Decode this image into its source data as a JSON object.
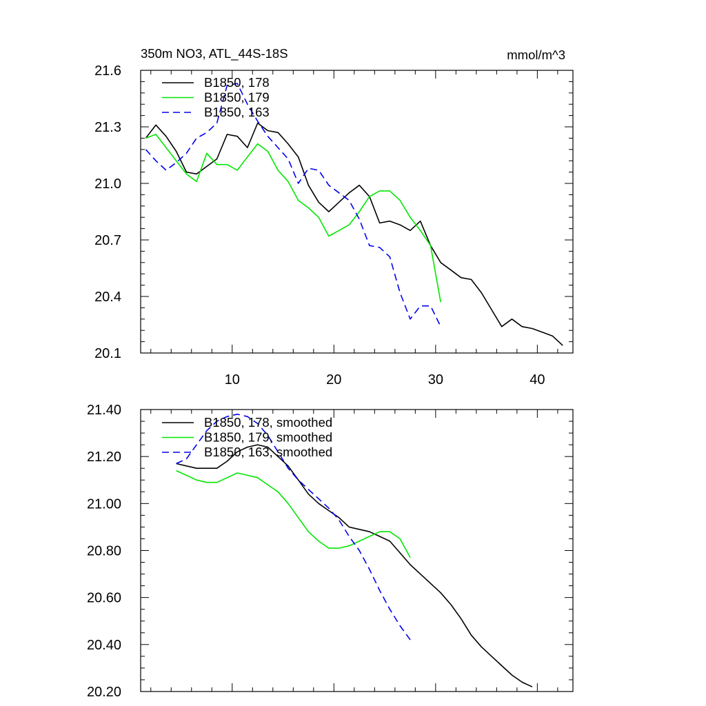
{
  "header": {
    "title": "350m NO3, ATL_44S-18S",
    "units": "mmol/m^3"
  },
  "chart_data": [
    {
      "type": "line",
      "title": "350m NO3, ATL_44S-18S",
      "units_label": "mmol/m^3",
      "xlabel": "",
      "ylabel": "",
      "xlim": [
        1,
        43.5
      ],
      "ylim": [
        20.1,
        21.6
      ],
      "x_ticks": [
        10,
        20,
        30,
        40
      ],
      "y_ticks": [
        20.1,
        20.4,
        20.7,
        21.0,
        21.3,
        21.6
      ],
      "y_tick_labels": [
        "20.1",
        "20.4",
        "20.7",
        "21.0",
        "21.3",
        "21.6"
      ],
      "legend": "top-left",
      "grid": false,
      "series": [
        {
          "name": "B1850, 178",
          "color": "#000000",
          "dash": "solid",
          "x": [
            1.5,
            2.5,
            3.5,
            4.5,
            5.5,
            6.5,
            7.5,
            8.5,
            9.5,
            10.5,
            11.5,
            12.5,
            13.5,
            14.5,
            15.5,
            16.5,
            17.5,
            18.5,
            19.5,
            20.5,
            21.5,
            22.5,
            23.5,
            24.5,
            25.5,
            26.5,
            27.5,
            28.5,
            29.5,
            30.5,
            31.5,
            32.5,
            33.5,
            34.5,
            35.5,
            36.5,
            37.5,
            38.5,
            39.5,
            40.5,
            41.5,
            42.5
          ],
          "y": [
            21.24,
            21.31,
            21.25,
            21.17,
            21.06,
            21.05,
            21.09,
            21.13,
            21.26,
            21.25,
            21.19,
            21.32,
            21.28,
            21.27,
            21.21,
            21.14,
            20.99,
            20.9,
            20.85,
            20.9,
            20.95,
            20.99,
            20.93,
            20.79,
            20.8,
            20.78,
            20.75,
            20.8,
            20.67,
            20.58,
            20.54,
            20.5,
            20.49,
            20.42,
            20.33,
            20.24,
            20.28,
            20.24,
            20.23,
            20.21,
            20.19,
            20.14
          ]
        },
        {
          "name": "B1850, 179",
          "color": "#00e600",
          "dash": "solid",
          "x": [
            1.5,
            2.5,
            3.5,
            4.5,
            5.5,
            6.5,
            7.5,
            8.5,
            9.5,
            10.5,
            11.5,
            12.5,
            13.5,
            14.5,
            15.5,
            16.5,
            17.5,
            18.5,
            19.5,
            20.5,
            21.5,
            22.5,
            23.5,
            24.5,
            25.5,
            26.5,
            27.5,
            28.5,
            29.5,
            30.5
          ],
          "y": [
            21.24,
            21.26,
            21.19,
            21.12,
            21.05,
            21.01,
            21.16,
            21.1,
            21.1,
            21.07,
            21.14,
            21.21,
            21.17,
            21.07,
            21.01,
            20.91,
            20.87,
            20.82,
            20.72,
            20.75,
            20.78,
            20.85,
            20.93,
            20.96,
            20.96,
            20.91,
            20.82,
            20.75,
            20.67,
            20.37
          ]
        },
        {
          "name": "B1850, 163",
          "color": "#0000ee",
          "dash": "dashed",
          "x": [
            1.5,
            2.5,
            3.5,
            4.5,
            5.5,
            6.5,
            7.5,
            8.5,
            9.5,
            10.5,
            11.5,
            12.5,
            13.5,
            14.5,
            15.5,
            16.5,
            17.5,
            18.5,
            19.5,
            20.5,
            21.5,
            22.5,
            23.5,
            24.5,
            25.5,
            26.5,
            27.5,
            28.5,
            29.5,
            30.5
          ],
          "y": [
            21.18,
            21.12,
            21.07,
            21.11,
            21.16,
            21.24,
            21.27,
            21.32,
            21.52,
            21.53,
            21.42,
            21.33,
            21.25,
            21.19,
            21.13,
            21.0,
            21.08,
            21.07,
            20.99,
            20.95,
            20.91,
            20.81,
            20.67,
            20.66,
            20.61,
            20.42,
            20.28,
            20.35,
            20.35,
            20.24
          ]
        }
      ]
    },
    {
      "type": "line",
      "xlabel": "",
      "ylabel": "",
      "xlim": [
        1,
        43.5
      ],
      "ylim": [
        20.2,
        21.4
      ],
      "x_ticks": [
        10,
        20,
        30,
        40
      ],
      "y_ticks": [
        20.2,
        20.4,
        20.6,
        20.8,
        21.0,
        21.2,
        21.4
      ],
      "y_tick_labels": [
        "20.20",
        "20.40",
        "20.60",
        "20.80",
        "21.00",
        "21.20",
        "21.40"
      ],
      "legend": "top-left",
      "grid": false,
      "series": [
        {
          "name": "B1850, 178, smoothed",
          "color": "#000000",
          "dash": "solid",
          "x": [
            4.5,
            5.5,
            6.5,
            7.5,
            8.5,
            9.5,
            10.5,
            11.5,
            12.5,
            13.5,
            14.5,
            15.5,
            16.5,
            17.5,
            18.5,
            19.5,
            20.5,
            21.5,
            22.5,
            23.5,
            24.5,
            25.5,
            26.5,
            27.5,
            28.5,
            29.5,
            30.5,
            31.5,
            32.5,
            33.5,
            34.5,
            35.5,
            36.5,
            37.5,
            38.5,
            39.5
          ],
          "y": [
            21.17,
            21.16,
            21.15,
            21.15,
            21.15,
            21.18,
            21.22,
            21.24,
            21.25,
            21.24,
            21.2,
            21.16,
            21.1,
            21.04,
            21.0,
            20.97,
            20.94,
            20.9,
            20.89,
            20.88,
            20.86,
            20.84,
            20.79,
            20.74,
            20.7,
            20.66,
            20.62,
            20.57,
            20.51,
            20.44,
            20.39,
            20.35,
            20.31,
            20.27,
            20.24,
            20.22
          ]
        },
        {
          "name": "B1850, 179, smoothed",
          "color": "#00e600",
          "dash": "solid",
          "x": [
            4.5,
            5.5,
            6.5,
            7.5,
            8.5,
            9.5,
            10.5,
            11.5,
            12.5,
            13.5,
            14.5,
            15.5,
            16.5,
            17.5,
            18.5,
            19.5,
            20.5,
            21.5,
            22.5,
            23.5,
            24.5,
            25.5,
            26.5,
            27.5
          ],
          "y": [
            21.14,
            21.12,
            21.1,
            21.09,
            21.09,
            21.11,
            21.13,
            21.12,
            21.11,
            21.08,
            21.05,
            21.0,
            20.94,
            20.88,
            20.84,
            20.81,
            20.81,
            20.82,
            20.84,
            20.86,
            20.88,
            20.88,
            20.85,
            20.77
          ]
        },
        {
          "name": "B1850, 163, smoothed",
          "color": "#0000ee",
          "dash": "dashed",
          "x": [
            4.5,
            5.5,
            6.5,
            7.5,
            8.5,
            9.5,
            10.5,
            11.5,
            12.5,
            13.5,
            14.5,
            15.5,
            16.5,
            17.5,
            18.5,
            19.5,
            20.5,
            21.5,
            22.5,
            23.5,
            24.5,
            25.5,
            26.5,
            27.5
          ],
          "y": [
            21.17,
            21.19,
            21.25,
            21.31,
            21.35,
            21.37,
            21.38,
            21.37,
            21.34,
            21.29,
            21.22,
            21.15,
            21.1,
            21.06,
            21.02,
            20.98,
            20.93,
            20.86,
            20.8,
            20.72,
            20.63,
            20.55,
            20.48,
            20.42
          ]
        }
      ]
    }
  ]
}
